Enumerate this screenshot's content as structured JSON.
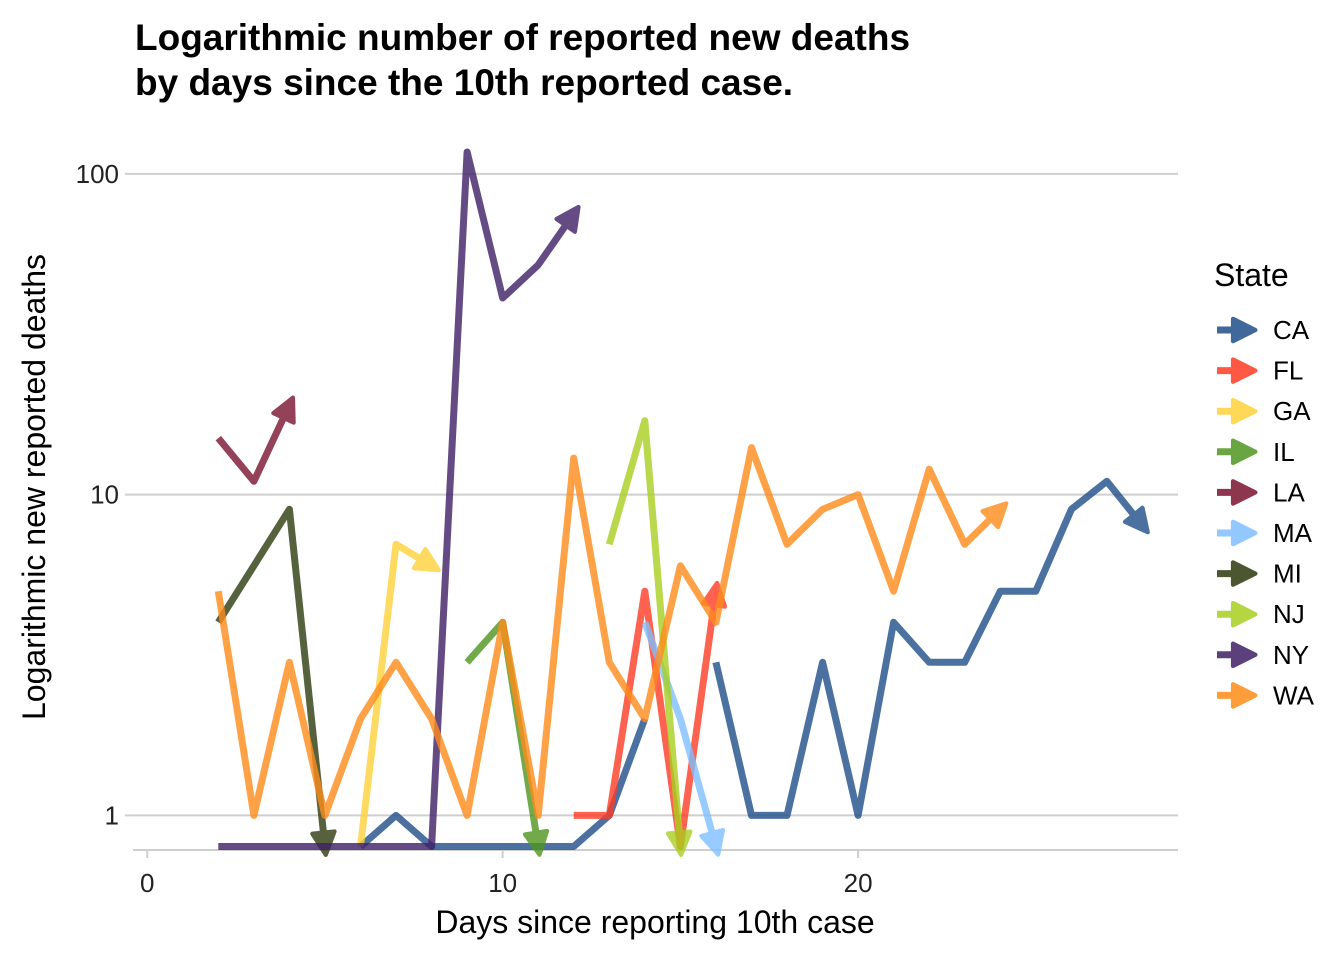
{
  "chart_data": {
    "type": "line",
    "title_lines": [
      "Logarithmic number of reported new deaths",
      "by days since the 10th reported case."
    ],
    "xlabel": "Days since reporting 10th case",
    "ylabel": "Logarithmic new reported deaths",
    "xlim": [
      -0.4,
      29.0
    ],
    "ylim": [
      0.78,
      123
    ],
    "y_scale": "log10",
    "x_ticks": [
      0,
      10,
      20
    ],
    "x_tick_labels": [
      "0",
      "10",
      "20"
    ],
    "y_ticks": [
      1,
      10,
      100
    ],
    "y_tick_labels": [
      "1",
      "10",
      "100"
    ],
    "grid": "horizontal-major",
    "legend_title": "State",
    "legend_position": "right",
    "series": [
      {
        "name": "CA",
        "color": "#1F4E89",
        "points": [
          [
            6,
            0.8
          ],
          [
            7,
            1
          ],
          [
            8,
            0.8
          ],
          [
            9,
            0.8
          ],
          [
            10,
            0.8
          ],
          [
            11,
            0.8
          ],
          [
            12,
            0.8
          ],
          [
            13,
            1
          ],
          [
            14,
            2
          ],
          [
            null,
            null
          ],
          [
            16,
            3
          ],
          [
            17,
            1
          ],
          [
            18,
            1
          ],
          [
            19,
            3
          ],
          [
            20,
            1
          ],
          [
            21,
            4
          ],
          [
            22,
            3
          ],
          [
            23,
            3
          ],
          [
            24,
            5
          ],
          [
            25,
            5
          ],
          [
            26,
            9
          ],
          [
            27,
            11
          ],
          [
            28,
            8
          ]
        ]
      },
      {
        "name": "FL",
        "color": "#FF3B24",
        "points": [
          [
            12,
            1
          ],
          [
            13,
            1
          ],
          [
            14,
            5
          ],
          [
            15,
            0.8
          ],
          [
            16,
            5
          ]
        ]
      },
      {
        "name": "GA",
        "color": "#FFD23A",
        "points": [
          [
            6,
            0.8
          ],
          [
            7,
            7
          ],
          [
            8,
            6
          ]
        ]
      },
      {
        "name": "IL",
        "color": "#4F961F",
        "points": [
          [
            9,
            3
          ],
          [
            10,
            4
          ],
          [
            11,
            0.8
          ]
        ]
      },
      {
        "name": "LA",
        "color": "#7A1330",
        "points": [
          [
            2,
            15
          ],
          [
            3,
            11
          ],
          [
            4,
            19
          ]
        ]
      },
      {
        "name": "MA",
        "color": "#7FBFFF",
        "points": [
          [
            14,
            4
          ],
          [
            15,
            2
          ],
          [
            16,
            0.8
          ]
        ]
      },
      {
        "name": "MI",
        "color": "#2D3A0E",
        "points": [
          [
            2,
            4
          ],
          [
            3,
            6
          ],
          [
            4,
            9
          ],
          [
            5,
            0.8
          ]
        ]
      },
      {
        "name": "NJ",
        "color": "#A8CF1F",
        "points": [
          [
            13,
            7
          ],
          [
            14,
            17
          ],
          [
            15,
            0.8
          ]
        ]
      },
      {
        "name": "NY",
        "color": "#3F1F66",
        "points": [
          [
            2,
            0.8
          ],
          [
            3,
            0.8
          ],
          [
            4,
            0.8
          ],
          [
            5,
            0.8
          ],
          [
            6,
            0.8
          ],
          [
            7,
            0.8
          ],
          [
            8,
            0.8
          ],
          [
            9,
            117
          ],
          [
            10,
            41
          ],
          [
            11,
            52
          ],
          [
            12,
            75
          ]
        ]
      },
      {
        "name": "WA",
        "color": "#FF8C1A",
        "points": [
          [
            2,
            5
          ],
          [
            3,
            1
          ],
          [
            4,
            3
          ],
          [
            5,
            1
          ],
          [
            6,
            2
          ],
          [
            7,
            3
          ],
          [
            8,
            2
          ],
          [
            9,
            1
          ],
          [
            10,
            4
          ],
          [
            11,
            1
          ],
          [
            12,
            13
          ],
          [
            13,
            3
          ],
          [
            14,
            2
          ],
          [
            15,
            6
          ],
          [
            16,
            4
          ],
          [
            17,
            14
          ],
          [
            18,
            7
          ],
          [
            19,
            9
          ],
          [
            20,
            10
          ],
          [
            21,
            5
          ],
          [
            22,
            12
          ],
          [
            23,
            7
          ],
          [
            24,
            9
          ]
        ]
      }
    ]
  }
}
